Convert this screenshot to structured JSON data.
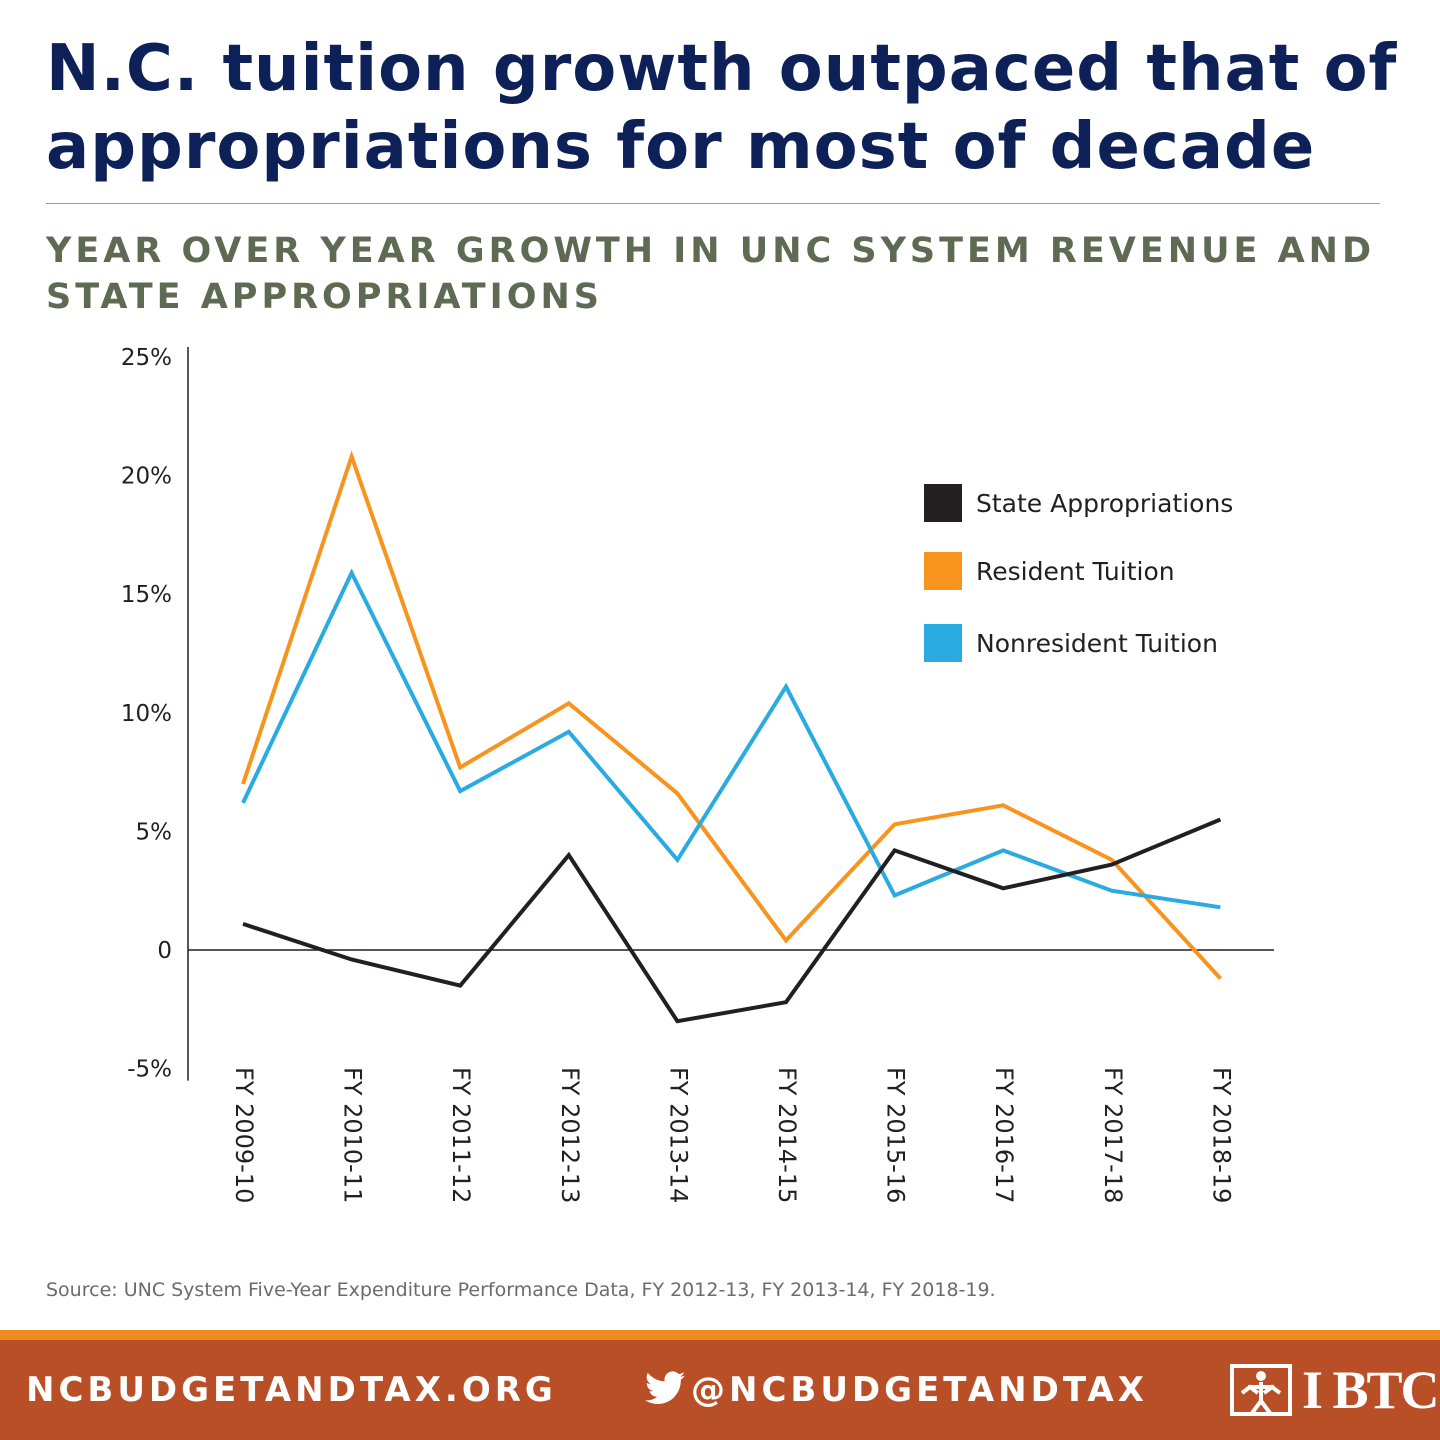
{
  "header": {
    "title": "N.C. tuition growth outpaced that of appropriations for most of decade",
    "subtitle": "YEAR OVER YEAR GROWTH IN UNC SYSTEM REVENUE AND STATE APPROPRIATIONS"
  },
  "chart_data": {
    "type": "line",
    "categories": [
      "FY 2009-10",
      "FY 2010-11",
      "FY 2011-12",
      "FY 2012-13",
      "FY 2013-14",
      "FY 2014-15",
      "FY 2015-16",
      "FY 2016-17",
      "FY 2017-18",
      "FY 2018-19"
    ],
    "series": [
      {
        "name": "State Appropriations",
        "color": "#231f20",
        "values": [
          1.1,
          -0.4,
          -1.5,
          4.0,
          -3.0,
          -2.2,
          4.2,
          2.6,
          3.6,
          5.5
        ]
      },
      {
        "name": "Resident Tuition",
        "color": "#f7941d",
        "values": [
          7.0,
          20.8,
          7.7,
          10.4,
          6.6,
          0.4,
          5.3,
          6.1,
          3.8,
          -1.2
        ]
      },
      {
        "name": "Nonresident Tuition",
        "color": "#29abe2",
        "values": [
          6.2,
          15.9,
          6.7,
          9.2,
          3.8,
          11.1,
          2.3,
          4.2,
          2.5,
          1.8
        ]
      }
    ],
    "yticks": [
      "25%",
      "20%",
      "15%",
      "10%",
      "5%",
      "0",
      "-5%"
    ],
    "ytick_values": [
      25,
      20,
      15,
      10,
      5,
      0,
      -5
    ],
    "ylim": [
      -5,
      25
    ],
    "xlabel": "",
    "ylabel": "",
    "legend_position": "top-right",
    "grid": false
  },
  "source": "Source: UNC System Five-Year Expenditure Performance Data, FY 2012-13, FY 2013-14, FY 2018-19.",
  "footer": {
    "website": "NCBUDGETANDTAX.ORG",
    "twitter_handle": "@NCBUDGETANDTAX",
    "logo_text": "I BTC",
    "logo_icon": "nc-budget-tax-center-logo-icon",
    "twitter_icon": "twitter-bird-icon",
    "background_color": "#b94f27",
    "stripe_color": "#f08a1c"
  }
}
